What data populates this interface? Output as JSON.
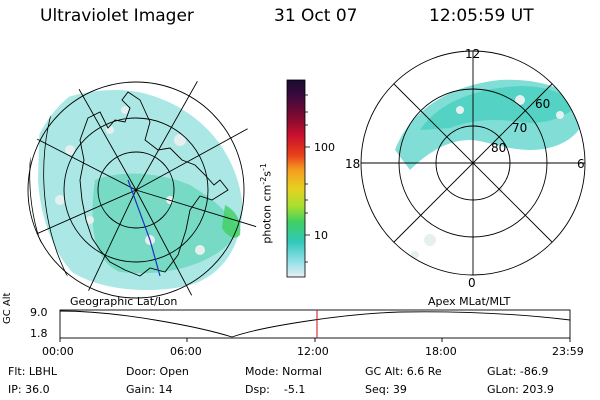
{
  "header": {
    "title": "Ultraviolet Imager",
    "date": "31 Oct 07",
    "time": "12:05:59 UT"
  },
  "colorbar": {
    "label": "photon cm",
    "label_exp1": "-2",
    "label_mid": "s",
    "label_exp2": "-1",
    "tick_high": "100",
    "tick_low": "10",
    "stops": [
      "#1a0a2e",
      "#3b0a3e",
      "#7a0a30",
      "#c8102e",
      "#e8401a",
      "#f4a020",
      "#e8d020",
      "#a8e030",
      "#40d060",
      "#30c8b8",
      "#90e0e8",
      "#e8eef0"
    ]
  },
  "left_map": {
    "label": "Geographic Lat/Lon",
    "fill_color": "#6ad8d0",
    "accent_color": "#40d060"
  },
  "right_map": {
    "label": "Apex  MLat/MLT",
    "labels": {
      "top": "12",
      "bottom": "0",
      "left": "18",
      "right": "6",
      "r60": "60",
      "r70": "70",
      "r80": "80"
    }
  },
  "timeline": {
    "ylabel": "GC Alt",
    "ytick_high": "9.0",
    "ytick_low": "1.8",
    "xticks": [
      "00:00",
      "06:00",
      "12:00",
      "18:00",
      "23:59"
    ],
    "marker_color": "#c81010"
  },
  "footer": {
    "flt": "Flt: LBHL",
    "ip": "IP: 36.0",
    "door": "Door: Open",
    "gain": "Gain: 14",
    "mode": "Mode: Normal",
    "dsp": "Dsp:    -5.1",
    "gcalt": "GC Alt: 6.6 Re",
    "seq": "Seq: 39",
    "glat": "GLat: -86.9",
    "glon": "GLon: 203.9"
  }
}
